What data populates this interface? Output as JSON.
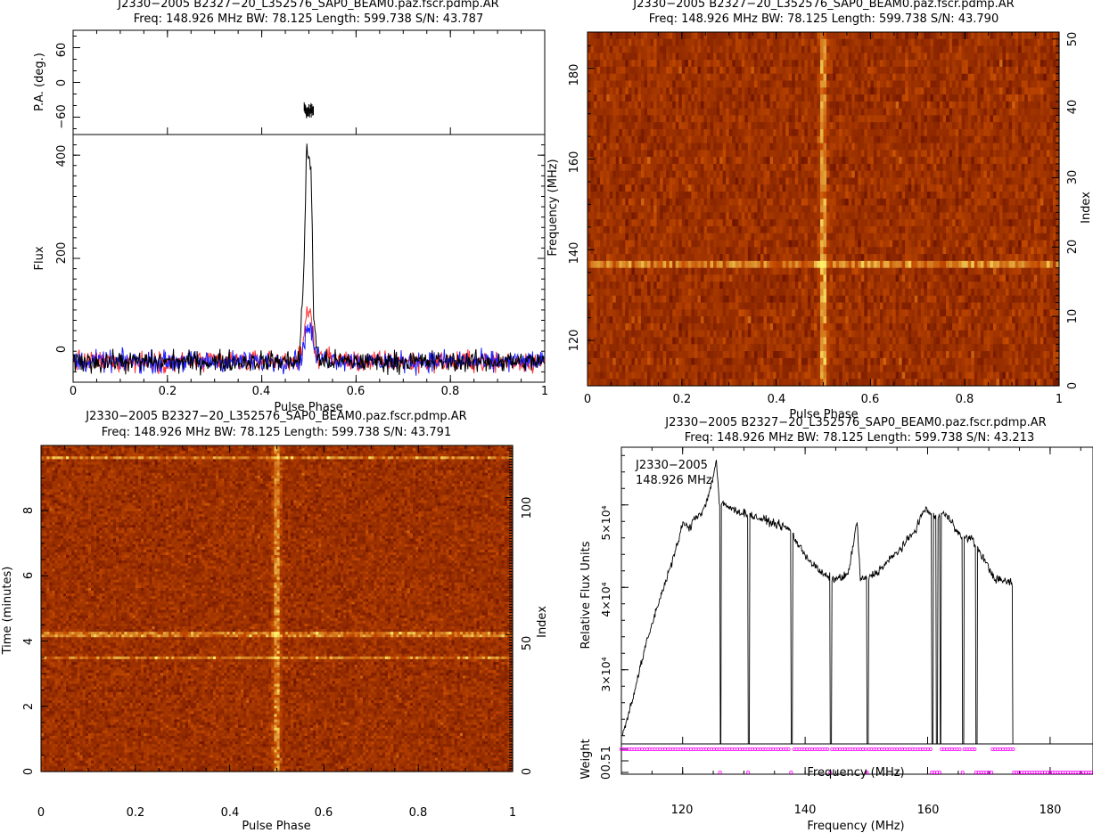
{
  "colors": {
    "heat_low": "#6e1400",
    "heat_high": "#fff06a",
    "total_intensity": "#000000",
    "linear_pol": "#ff3030",
    "circular_pol": "#2020ff",
    "weight_marker": "#ff00ff"
  },
  "panels": {
    "profile": {
      "title1": "J2330−2005  B2327−20_L352576_SAP0_BEAM0.paz.fscr.pdmp.AR",
      "title2": "Freq: 148.926 MHz BW: 78.125 Length: 599.738 S/N: 43.787",
      "pa_ylabel": "P.A. (deg.)",
      "pa_ticks": [
        "60",
        "0",
        "−60"
      ],
      "flux_ylabel": "Flux",
      "flux_ticks": [
        "400",
        "200",
        "0"
      ],
      "xlabel": "Pulse Phase",
      "xticks": [
        "0",
        "0.2",
        "0.4",
        "0.6",
        "0.8",
        "1"
      ]
    },
    "phase_freq": {
      "title1": "J2330−2005  B2327−20_L352576_SAP0_BEAM0.paz.fscr.pdmp.AR",
      "title2": "Freq: 148.926 MHz BW: 78.125 Length: 599.738 S/N: 43.790",
      "ylabel": "Frequency (MHz)",
      "yticks": [
        "180",
        "160",
        "140",
        "120"
      ],
      "right_label": "Index",
      "right_ticks": [
        "50",
        "40",
        "30",
        "20",
        "10",
        "0"
      ],
      "xlabel": "Pulse Phase",
      "xticks": [
        "0",
        "0.2",
        "0.4",
        "0.6",
        "0.8",
        "1"
      ]
    },
    "phase_time": {
      "title1": "J2330−2005  B2327−20_L352576_SAP0_BEAM0.paz.fscr.pdmp.AR",
      "title2": "Freq: 148.926 MHz BW: 78.125 Length: 599.738 S/N: 43.791",
      "ylabel": "Time (minutes)",
      "yticks": [
        "8",
        "6",
        "4",
        "2",
        "0"
      ],
      "right_label": "Index",
      "right_ticks": [
        "100",
        "50",
        "0"
      ],
      "xlabel": "Pulse Phase",
      "xticks": [
        "0",
        "0.2",
        "0.4",
        "0.6",
        "0.8",
        "1"
      ]
    },
    "bandpass": {
      "title1": "J2330−2005  B2327−20_L352576_SAP0_BEAM0.paz.fscr.pdmp.AR",
      "title2": "Freq: 148.926 MHz BW: 78.125 Length: 599.738 S/N: 43.213",
      "annotation1": "J2330−2005",
      "annotation2": "148.926 MHz",
      "ylabel": "Relative Flux Units",
      "yticks": [
        "5×10⁴",
        "4×10⁴",
        "3×10⁴"
      ],
      "inner_xlabel": "Frequency (MHz)",
      "weight_label": "Weight",
      "weight_ticks": [
        "1",
        "0.5",
        "0"
      ],
      "xlabel": "Frequency (MHz)",
      "xticks": [
        "120",
        "140",
        "160",
        "180"
      ]
    }
  },
  "chart_data": [
    {
      "type": "line",
      "title": "J2330−2005  B2327−20_L352576_SAP0_BEAM0.paz.fscr.pdmp.AR",
      "subtitle": "Freq: 148.926 MHz BW: 78.125 Length: 599.738 S/N: 43.787",
      "xlabel": "Pulse Phase",
      "ylabel": "Flux",
      "xlim": [
        0,
        1
      ],
      "ylim": [
        -40,
        440
      ],
      "series": [
        {
          "x": [
            0,
            0.2,
            0.4,
            0.48,
            0.49,
            0.495,
            0.5,
            0.505,
            0.51,
            0.52,
            0.6,
            0.8,
            1
          ],
          "values": [
            0,
            0,
            0,
            2,
            200,
            410,
            390,
            370,
            90,
            0,
            0,
            0,
            0
          ]
        },
        {
          "x": [
            0,
            0.2,
            0.4,
            0.485,
            0.495,
            0.505,
            0.515,
            0.6,
            1
          ],
          "values": [
            0,
            0,
            0,
            5,
            100,
            85,
            10,
            0,
            0
          ]
        },
        {
          "x": [
            0,
            0.2,
            0.4,
            0.485,
            0.495,
            0.505,
            0.515,
            0.6,
            1
          ],
          "values": [
            0,
            0,
            0,
            3,
            70,
            60,
            8,
            0,
            0
          ]
        }
      ],
      "pa_panel": {
        "ylabel": "P.A. (deg.)",
        "ylim": [
          -90,
          90
        ],
        "x": [
          0.49,
          0.495,
          0.5,
          0.505
        ],
        "values": [
          -48,
          -52,
          -48,
          -50
        ]
      }
    },
    {
      "type": "heatmap",
      "title": "J2330−2005  B2327−20_L352576_SAP0_BEAM0.paz.fscr.pdmp.AR",
      "subtitle": "Freq: 148.926 MHz BW: 78.125 Length: 599.738 S/N: 43.790",
      "xlabel": "Pulse Phase",
      "ylabel": "Frequency (MHz)",
      "xlim": [
        0,
        1
      ],
      "ylim": [
        110,
        188
      ],
      "right_axis": {
        "label": "Index",
        "range": [
          0,
          51
        ]
      },
      "pulse_phase": 0.5,
      "bright_frequency_channel": 137
    },
    {
      "type": "heatmap",
      "title": "J2330−2005  B2327−20_L352576_SAP0_BEAM0.paz.fscr.pdmp.AR",
      "subtitle": "Freq: 148.926 MHz BW: 78.125 Length: 599.738 S/N: 43.791",
      "xlabel": "Pulse Phase",
      "ylabel": "Time (minutes)",
      "xlim": [
        0,
        1
      ],
      "ylim": [
        0,
        10
      ],
      "right_axis": {
        "label": "Index",
        "range": [
          0,
          119
        ]
      },
      "pulse_phase": 0.5,
      "bright_times_minutes": [
        9.6,
        4.2,
        3.45
      ]
    },
    {
      "type": "line",
      "title": "J2330−2005  B2327−20_L352576_SAP0_BEAM0.paz.fscr.pdmp.AR",
      "subtitle": "Freq: 148.926 MHz BW: 78.125 Length: 599.738 S/N: 43.213",
      "xlabel": "Frequency (MHz)",
      "ylabel": "Relative Flux Units",
      "xlim": [
        110,
        187
      ],
      "ylim": [
        21000,
        57000
      ],
      "series": [
        {
          "x": [
            110.2,
            112,
            114,
            116,
            118,
            119.5,
            120,
            121,
            122,
            123,
            124,
            125,
            125.5,
            126,
            127,
            128,
            130,
            132,
            134,
            136,
            137.5,
            139,
            141,
            143,
            145,
            147,
            148.5,
            149,
            150,
            152,
            154,
            156,
            158,
            159.5,
            160.5,
            161.5,
            162.5,
            164,
            165.5,
            167,
            168,
            171,
            174
          ],
          "values": [
            22000,
            27000,
            33000,
            38000,
            42500,
            46000,
            48000,
            47000,
            48500,
            49000,
            50500,
            53500,
            55500,
            50000,
            50000,
            49500,
            49000,
            48500,
            48000,
            47500,
            47000,
            45000,
            43000,
            41500,
            41000,
            41500,
            48000,
            41000,
            41000,
            42000,
            43500,
            45000,
            47000,
            49500,
            49000,
            48500,
            49000,
            48000,
            46000,
            46000,
            45000,
            41000,
            40500
          ]
        }
      ],
      "zapped_channels_MHz": [
        126.2,
        130.8,
        137.8,
        144.2,
        150.2,
        160.8,
        161.5,
        162.1,
        165.8,
        168,
        174
      ],
      "weight_panel": {
        "label": "Weight",
        "ylim": [
          0,
          1
        ],
        "weight_one_ranges_MHz": [
          [
            110,
            126
          ],
          [
            126.4,
            130.6
          ],
          [
            131,
            137.6
          ],
          [
            138.2,
            144
          ],
          [
            144.4,
            150
          ],
          [
            150.4,
            160.6
          ],
          [
            162.3,
            165.6
          ],
          [
            166,
            167.8
          ],
          [
            170.6,
            174
          ]
        ],
        "weight_zero_ranges_MHz": [
          [
            126.1,
            126.3
          ],
          [
            130.7,
            130.9
          ],
          [
            137.7,
            138.1
          ],
          [
            144.1,
            144.3
          ],
          [
            150.1,
            150.3
          ],
          [
            160.7,
            162.2
          ],
          [
            165.7,
            165.9
          ],
          [
            167.9,
            170.5
          ],
          [
            174.1,
            187
          ]
        ]
      }
    }
  ]
}
